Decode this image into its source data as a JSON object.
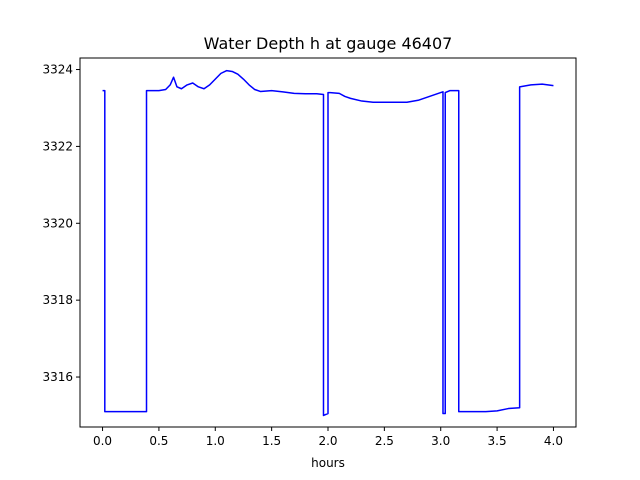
{
  "chart_data": {
    "type": "line",
    "title": "Water Depth h at gauge 46407",
    "xlabel": "hours",
    "ylabel": "",
    "xlim": [
      -0.2,
      4.2
    ],
    "ylim": [
      3314.7,
      3324.3
    ],
    "xticks": [
      0.0,
      0.5,
      1.0,
      1.5,
      2.0,
      2.5,
      3.0,
      3.5,
      4.0
    ],
    "xtick_labels": [
      "0.0",
      "0.5",
      "1.0",
      "1.5",
      "2.0",
      "2.5",
      "3.0",
      "3.5",
      "4.0"
    ],
    "yticks": [
      3316,
      3318,
      3320,
      3322,
      3324
    ],
    "ytick_labels": [
      "3316",
      "3318",
      "3320",
      "3322",
      "3324"
    ],
    "grid": false,
    "legend": false,
    "series": [
      {
        "color": "#0000ff",
        "x": [
          0.0,
          0.02,
          0.02,
          0.2,
          0.39,
          0.39,
          0.5,
          0.56,
          0.6,
          0.63,
          0.66,
          0.7,
          0.75,
          0.8,
          0.85,
          0.9,
          0.95,
          1.0,
          1.05,
          1.1,
          1.15,
          1.2,
          1.25,
          1.3,
          1.35,
          1.4,
          1.5,
          1.6,
          1.7,
          1.8,
          1.9,
          1.96,
          1.96,
          2.0,
          2.0,
          2.02,
          2.1,
          2.15,
          2.2,
          2.3,
          2.4,
          2.5,
          2.6,
          2.7,
          2.8,
          2.9,
          3.0,
          3.02,
          3.02,
          3.04,
          3.04,
          3.08,
          3.16,
          3.16,
          3.3,
          3.4,
          3.5,
          3.6,
          3.7,
          3.7,
          3.8,
          3.9,
          4.0
        ],
        "y": [
          3323.45,
          3323.45,
          3315.1,
          3315.1,
          3315.1,
          3323.45,
          3323.45,
          3323.48,
          3323.6,
          3323.8,
          3323.55,
          3323.5,
          3323.6,
          3323.65,
          3323.55,
          3323.5,
          3323.6,
          3323.75,
          3323.9,
          3323.97,
          3323.95,
          3323.88,
          3323.75,
          3323.6,
          3323.48,
          3323.43,
          3323.45,
          3323.42,
          3323.38,
          3323.37,
          3323.37,
          3323.35,
          3315.0,
          3315.05,
          3323.4,
          3323.4,
          3323.38,
          3323.3,
          3323.25,
          3323.18,
          3323.15,
          3323.15,
          3323.15,
          3323.15,
          3323.2,
          3323.3,
          3323.4,
          3323.42,
          3315.05,
          3315.05,
          3323.4,
          3323.45,
          3323.45,
          3315.1,
          3315.1,
          3315.1,
          3315.12,
          3315.18,
          3315.2,
          3323.55,
          3323.6,
          3323.62,
          3323.58
        ]
      }
    ]
  }
}
